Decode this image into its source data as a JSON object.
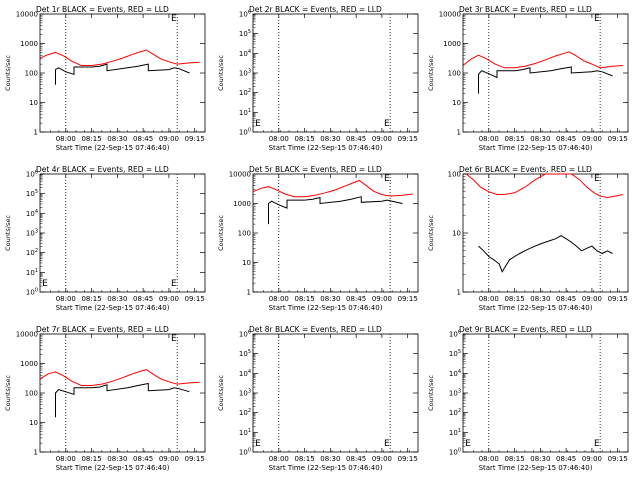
{
  "colors": {
    "events": "#000000",
    "lld": "#ff0000",
    "axis": "#000000",
    "background": "#ffffff"
  },
  "chart_data": [
    {
      "type": "line",
      "title": "Det 1r BLACK = Events, RED = LLD",
      "ylabel": "Counts/sec",
      "xlabel": "Start Time (22-Sep-15 07:46:40)",
      "xlim": [
        7.75,
        9.35
      ],
      "ylim": [
        1,
        10000
      ],
      "scale": "log",
      "ytick_labels": [
        "1",
        "10",
        "100",
        "1000",
        "10000"
      ],
      "xtick_labels": [
        "08:00",
        "08:15",
        "08:30",
        "08:45",
        "09:00",
        "09:15"
      ],
      "vlines": [
        8.0,
        9.08
      ],
      "marker": {
        "label": "E",
        "x": 9.02,
        "y": 10000
      },
      "series": [
        {
          "name": "LLD",
          "color": "red",
          "x": [
            7.75,
            7.83,
            7.9,
            7.98,
            8.06,
            8.15,
            8.25,
            8.35,
            8.45,
            8.55,
            8.65,
            8.72,
            8.78,
            8.85,
            8.92,
            9.0,
            9.08,
            9.2,
            9.3
          ],
          "values": [
            320,
            420,
            500,
            380,
            250,
            180,
            180,
            200,
            250,
            320,
            430,
            520,
            600,
            430,
            300,
            240,
            200,
            220,
            230
          ]
        },
        {
          "name": "Events",
          "color": "black",
          "x": [
            7.9,
            7.9,
            7.93,
            8.0,
            8.08,
            8.08,
            8.25,
            8.33,
            8.4,
            8.4,
            8.6,
            8.7,
            8.8,
            8.8,
            9.0,
            9.05,
            9.1,
            9.2
          ],
          "values": [
            40,
            130,
            150,
            110,
            90,
            160,
            160,
            170,
            200,
            120,
            150,
            170,
            200,
            120,
            130,
            150,
            140,
            100
          ]
        }
      ]
    },
    {
      "type": "line",
      "title": "Det 2r BLACK = Events, RED = LLD",
      "ylabel": "Counts/sec",
      "xlabel": "Start Time (22-Sep-15 07:46:40)",
      "xlim": [
        7.75,
        9.35
      ],
      "ylim": [
        1,
        1000000
      ],
      "scale": "log",
      "ytick_labels": [
        "10^0",
        "10^1",
        "10^2",
        "10^3",
        "10^4",
        "10^5",
        "10^6"
      ],
      "xtick_labels": [
        "08:00",
        "08:15",
        "08:30",
        "08:45",
        "09:00",
        "09:15"
      ],
      "vlines": [
        8.0,
        9.08
      ],
      "marker": {
        "label": "E",
        "x": 9.02,
        "y": 1.6
      },
      "marker_left": {
        "label": "E",
        "x": 7.77,
        "y": 1.6
      },
      "series": []
    },
    {
      "type": "line",
      "title": "Det 3r BLACK = Events, RED = LLD",
      "ylabel": "Counts/sec",
      "xlabel": "Start Time (22-Sep-15 07:46:40)",
      "xlim": [
        7.75,
        9.35
      ],
      "ylim": [
        1,
        10000
      ],
      "scale": "log",
      "ytick_labels": [
        "1",
        "10",
        "100",
        "1000",
        "10000"
      ],
      "xtick_labels": [
        "08:00",
        "08:15",
        "08:30",
        "08:45",
        "09:00",
        "09:15"
      ],
      "vlines": [
        8.0,
        9.08
      ],
      "marker": {
        "label": "E",
        "x": 9.02,
        "y": 10000
      },
      "series": [
        {
          "name": "LLD",
          "color": "red",
          "x": [
            7.75,
            7.83,
            7.9,
            7.98,
            8.06,
            8.15,
            8.25,
            8.35,
            8.45,
            8.55,
            8.65,
            8.72,
            8.78,
            8.85,
            8.92,
            9.0,
            9.08,
            9.2,
            9.3
          ],
          "values": [
            180,
            300,
            400,
            300,
            200,
            150,
            150,
            170,
            210,
            280,
            380,
            450,
            520,
            380,
            260,
            200,
            150,
            170,
            180
          ]
        },
        {
          "name": "Events",
          "color": "black",
          "x": [
            7.9,
            7.9,
            7.93,
            8.0,
            8.08,
            8.08,
            8.25,
            8.33,
            8.4,
            8.4,
            8.6,
            8.7,
            8.8,
            8.8,
            9.0,
            9.05,
            9.1,
            9.2
          ],
          "values": [
            20,
            90,
            120,
            95,
            70,
            120,
            120,
            130,
            150,
            100,
            120,
            140,
            160,
            100,
            110,
            120,
            110,
            80
          ]
        }
      ]
    },
    {
      "type": "line",
      "title": "Det 4r BLACK = Events, RED = LLD",
      "ylabel": "Counts/sec",
      "xlabel": "Start Time (22-Sep-15 07:46:40)",
      "xlim": [
        7.75,
        9.35
      ],
      "ylim": [
        1,
        1000000
      ],
      "scale": "log",
      "ytick_labels": [
        "10^0",
        "10^1",
        "10^2",
        "10^3",
        "10^4",
        "10^5",
        "10^6"
      ],
      "xtick_labels": [
        "08:00",
        "08:15",
        "08:30",
        "08:45",
        "09:00",
        "09:15"
      ],
      "vlines": [
        8.0,
        9.08
      ],
      "marker": {
        "label": "E",
        "x": 9.02,
        "y": 1.6
      },
      "marker_left": {
        "label": "E",
        "x": 7.77,
        "y": 1.6
      },
      "series": []
    },
    {
      "type": "line",
      "title": "Det 5r BLACK = Events, RED = LLD",
      "ylabel": "Counts/sec",
      "xlabel": "Start Time (22-Sep-15 07:46:40)",
      "xlim": [
        7.75,
        9.35
      ],
      "ylim": [
        1,
        10000
      ],
      "scale": "log",
      "ytick_labels": [
        "1",
        "10",
        "100",
        "1000",
        "10000"
      ],
      "xtick_labels": [
        "08:00",
        "08:15",
        "08:30",
        "08:45",
        "09:00",
        "09:15"
      ],
      "vlines": [
        8.0,
        9.08
      ],
      "marker": {
        "label": "E",
        "x": 9.02,
        "y": 10000
      },
      "series": [
        {
          "name": "LLD",
          "color": "red",
          "x": [
            7.75,
            7.83,
            7.9,
            7.98,
            8.06,
            8.15,
            8.25,
            8.35,
            8.45,
            8.55,
            8.65,
            8.72,
            8.78,
            8.85,
            8.92,
            9.0,
            9.08,
            9.2,
            9.3
          ],
          "values": [
            2500,
            3300,
            3700,
            2900,
            2100,
            1700,
            1700,
            1900,
            2300,
            2900,
            4000,
            5000,
            6000,
            4000,
            2600,
            2000,
            1800,
            1900,
            2100
          ]
        },
        {
          "name": "Events",
          "color": "black",
          "x": [
            7.9,
            7.9,
            7.93,
            8.0,
            8.08,
            8.08,
            8.25,
            8.33,
            8.4,
            8.4,
            8.6,
            8.7,
            8.8,
            8.8,
            9.0,
            9.05,
            9.1,
            9.2
          ],
          "values": [
            200,
            1000,
            1200,
            900,
            700,
            1300,
            1300,
            1400,
            1600,
            1000,
            1200,
            1400,
            1700,
            1100,
            1200,
            1300,
            1200,
            1000
          ]
        }
      ]
    },
    {
      "type": "line",
      "title": "Det 6r BLACK = Events, RED = LLD",
      "ylabel": "Counts/sec",
      "xlabel": "Start Time (22-Sep-15 07:46:40)",
      "xlim": [
        7.75,
        9.35
      ],
      "ylim": [
        1,
        100
      ],
      "scale": "log",
      "ytick_labels": [
        "1",
        "10",
        "100"
      ],
      "xtick_labels": [
        "08:00",
        "08:15",
        "08:30",
        "08:45",
        "09:00",
        "09:15"
      ],
      "vlines": [
        8.0,
        9.08
      ],
      "marker": {
        "label": "E",
        "x": 9.02,
        "y": 100
      },
      "series": [
        {
          "name": "LLD",
          "color": "red",
          "x": [
            7.78,
            7.85,
            7.92,
            8.0,
            8.08,
            8.15,
            8.25,
            8.35,
            8.45,
            8.55,
            8.65,
            8.72,
            8.8,
            8.88,
            8.95,
            9.02,
            9.08,
            9.15,
            9.25,
            9.3
          ],
          "values": [
            100,
            80,
            60,
            50,
            45,
            45,
            48,
            60,
            80,
            100,
            100,
            100,
            100,
            80,
            60,
            48,
            42,
            40,
            43,
            45
          ]
        },
        {
          "name": "Events",
          "color": "black",
          "x": [
            7.9,
            7.95,
            8.0,
            8.05,
            8.1,
            8.13,
            8.2,
            8.25,
            8.3,
            8.35,
            8.4,
            8.45,
            8.5,
            8.55,
            8.6,
            8.65,
            8.7,
            8.75,
            8.8,
            8.85,
            8.9,
            8.95,
            9.0,
            9.05,
            9.1,
            9.15,
            9.2
          ],
          "values": [
            6,
            5,
            4,
            3.5,
            3,
            2.2,
            3.5,
            4,
            4.5,
            5,
            5.5,
            6,
            6.5,
            7,
            7.5,
            8,
            9,
            8,
            7,
            6,
            5,
            5.5,
            6,
            5,
            4.5,
            5,
            4.5
          ]
        }
      ]
    },
    {
      "type": "line",
      "title": "Det 7r BLACK = Events, RED = LLD",
      "ylabel": "Counts/sec",
      "xlabel": "Start Time (22-Sep-15 07:46:40)",
      "xlim": [
        7.75,
        9.35
      ],
      "ylim": [
        1,
        10000
      ],
      "scale": "log",
      "ytick_labels": [
        "1",
        "10",
        "100",
        "1000",
        "10000"
      ],
      "xtick_labels": [
        "08:00",
        "08:15",
        "08:30",
        "08:45",
        "09:00",
        "09:15"
      ],
      "vlines": [
        8.0,
        9.08
      ],
      "marker": {
        "label": "E",
        "x": 9.02,
        "y": 10000
      },
      "series": [
        {
          "name": "LLD",
          "color": "red",
          "x": [
            7.75,
            7.83,
            7.9,
            7.98,
            8.06,
            8.15,
            8.25,
            8.35,
            8.45,
            8.55,
            8.65,
            8.72,
            8.78,
            8.85,
            8.92,
            9.0,
            9.08,
            9.2,
            9.3
          ],
          "values": [
            300,
            450,
            520,
            380,
            250,
            180,
            180,
            200,
            250,
            330,
            450,
            540,
            620,
            430,
            300,
            240,
            200,
            220,
            230
          ]
        },
        {
          "name": "Events",
          "color": "black",
          "x": [
            7.9,
            7.9,
            7.93,
            8.0,
            8.08,
            8.08,
            8.25,
            8.33,
            8.4,
            8.4,
            8.6,
            8.7,
            8.8,
            8.8,
            9.0,
            9.05,
            9.1,
            9.2
          ],
          "values": [
            15,
            100,
            130,
            110,
            90,
            150,
            150,
            160,
            190,
            120,
            150,
            180,
            210,
            120,
            130,
            150,
            140,
            110
          ]
        }
      ]
    },
    {
      "type": "line",
      "title": "Det 8r BLACK = Events, RED = LLD",
      "ylabel": "Counts/sec",
      "xlabel": "Start Time (22-Sep-15 07:46:40)",
      "xlim": [
        7.75,
        9.35
      ],
      "ylim": [
        1,
        1000000
      ],
      "scale": "log",
      "ytick_labels": [
        "10^0",
        "10^1",
        "10^2",
        "10^3",
        "10^4",
        "10^5",
        "10^6"
      ],
      "xtick_labels": [
        "08:00",
        "08:15",
        "08:30",
        "08:45",
        "09:00",
        "09:15"
      ],
      "vlines": [
        8.0,
        9.08
      ],
      "marker": {
        "label": "E",
        "x": 9.02,
        "y": 1.6
      },
      "marker_left": {
        "label": "E",
        "x": 7.77,
        "y": 1.6
      },
      "series": []
    },
    {
      "type": "line",
      "title": "Det 9r BLACK = Events, RED = LLD",
      "ylabel": "Counts/sec",
      "xlabel": "Start Time (22-Sep-15 07:46:40)",
      "xlim": [
        7.75,
        9.35
      ],
      "ylim": [
        1,
        1000000
      ],
      "scale": "log",
      "ytick_labels": [
        "10^0",
        "10^1",
        "10^2",
        "10^3",
        "10^4",
        "10^5",
        "10^6"
      ],
      "xtick_labels": [
        "08:00",
        "08:15",
        "08:30",
        "08:45",
        "09:00",
        "09:15"
      ],
      "vlines": [
        8.0,
        9.08
      ],
      "marker": {
        "label": "E",
        "x": 9.02,
        "y": 1.6
      },
      "marker_left": {
        "label": "E",
        "x": 7.77,
        "y": 1.6
      },
      "series": []
    }
  ]
}
